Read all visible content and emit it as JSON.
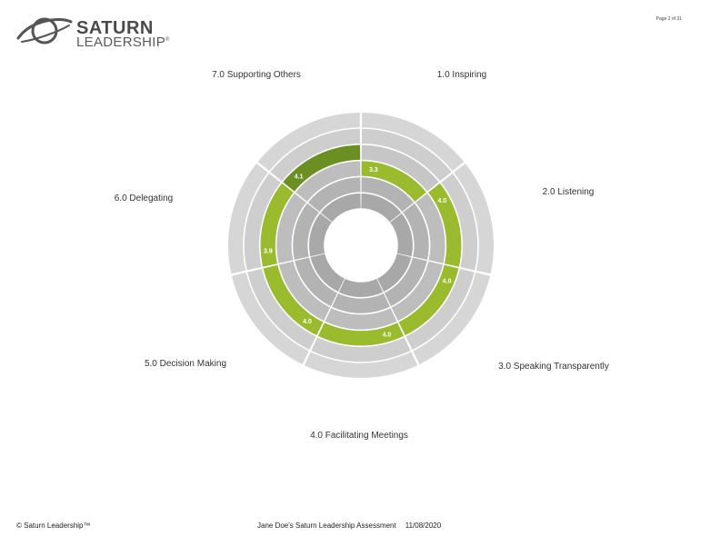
{
  "header": {
    "brand_line1": "SATURN",
    "brand_line2": "LEADERSHIP",
    "trademark": "®",
    "page": "Page 2 of 31"
  },
  "footer": {
    "copyright": "© Saturn Leadership™",
    "report_title": "Jane Doe's Saturn Leadership Assessment",
    "date": "11/08/2020"
  },
  "colors": {
    "ring_light": "#d6d6d6",
    "ring_mid": "#c6c6c6",
    "ring_dark": "#acacac",
    "score_green": "#9bbb2e",
    "score_dark_green": "#6b8f23"
  },
  "chart_data": {
    "type": "radial-bar",
    "scale_max": 5,
    "rings": 5,
    "categories": [
      {
        "label": "1.0 Inspiring",
        "value": 3.3,
        "value_label": "3.3",
        "highlight": false
      },
      {
        "label": "2.0 Listening",
        "value": 4.0,
        "value_label": "4.0",
        "highlight": false
      },
      {
        "label": "3.0 Speaking Transparently",
        "value": 4.0,
        "value_label": "4.0",
        "highlight": false
      },
      {
        "label": "4.0 Facilitating Meetings",
        "value": 4.0,
        "value_label": "4.0",
        "highlight": false
      },
      {
        "label": "5.0 Decision Making",
        "value": 4.0,
        "value_label": "4.0",
        "highlight": false
      },
      {
        "label": "6.0 Delegating",
        "value": 3.9,
        "value_label": "3.9",
        "highlight": false
      },
      {
        "label": "7.0 Supporting Others",
        "value": 4.1,
        "value_label": "4.1",
        "highlight": true
      }
    ]
  }
}
